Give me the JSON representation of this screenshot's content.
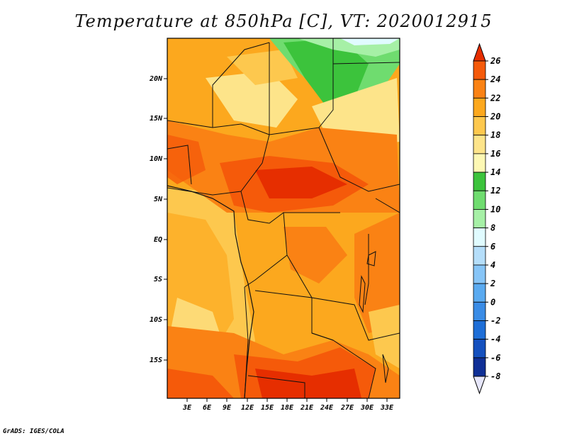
{
  "title": "Temperature at 850hPa [C], VT: 2020012915",
  "credit": "GrADS: IGES/COLA",
  "map": {
    "lat_ticks": [
      "20N",
      "15N",
      "10N",
      "5N",
      "EQ",
      "5S",
      "10S",
      "15S"
    ],
    "lon_ticks": [
      "3E",
      "6E",
      "9E",
      "12E",
      "15E",
      "18E",
      "21E",
      "24E",
      "27E",
      "30E",
      "33E"
    ],
    "field": "temperature at 850hPa",
    "units": "C"
  },
  "colorbar": {
    "labels": [
      "26",
      "24",
      "22",
      "20",
      "18",
      "16",
      "14",
      "12",
      "10",
      "8",
      "6",
      "4",
      "2",
      "0",
      "-2",
      "-4",
      "-6",
      "-8"
    ],
    "colors": [
      "#e62e00",
      "#f55a0a",
      "#fa8214",
      "#fca81e",
      "#fdc84e",
      "#fde48a",
      "#fdf8b4",
      "#3cc33c",
      "#6fdc6f",
      "#a6f0a6",
      "#e0fbff",
      "#b5defa",
      "#87c5f7",
      "#5aaaf0",
      "#3a8ce6",
      "#1e6ed7",
      "#1450be",
      "#0f2f96",
      "#0a1a6e",
      "#e6e6fa"
    ]
  }
}
